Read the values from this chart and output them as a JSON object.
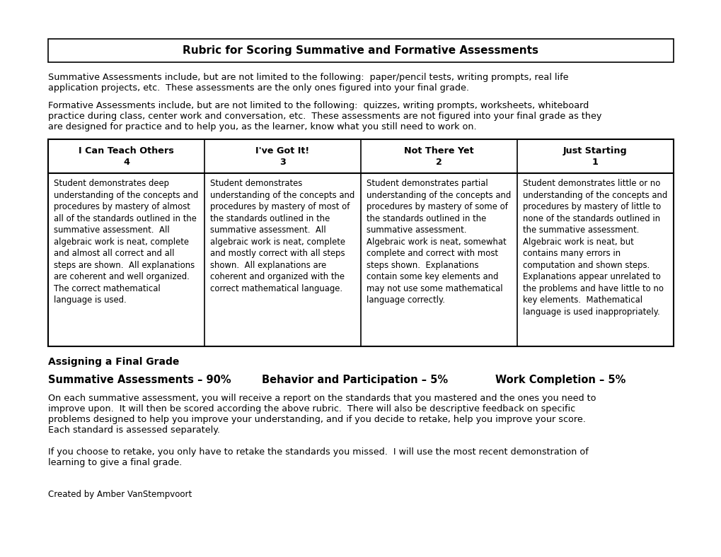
{
  "title": "Rubric for Scoring Summative and Formative Assessments",
  "summative_intro_l1": "Summative Assessments include, but are not limited to the following:  paper/pencil tests, writing prompts, real life",
  "summative_intro_l2": "application projects, etc.  These assessments are the only ones figured into your final grade.",
  "formative_intro_l1": "Formative Assessments include, but are not limited to the following:  quizzes, writing prompts, worksheets, whiteboard",
  "formative_intro_l2": "practice during class, center work and conversation, etc.  These assessments are not figured into your final grade as they",
  "formative_intro_l3": "are designed for practice and to help you, as the learner, know what you still need to work on.",
  "table_headers": [
    [
      "I Can Teach Others",
      "4"
    ],
    [
      "I've Got It!",
      "3"
    ],
    [
      "Not There Yet",
      "2"
    ],
    [
      "Just Starting",
      "1"
    ]
  ],
  "table_body": [
    "Student demonstrates deep\nunderstanding of the concepts and\nprocedures by mastery of almost\nall of the standards outlined in the\nsummative assessment.  All\nalgebraic work is neat, complete\nand almost all correct and all\nsteps are shown.  All explanations\nare coherent and well organized.\nThe correct mathematical\nlanguage is used.",
    "Student demonstrates\nunderstanding of the concepts and\nprocedures by mastery of most of\nthe standards outlined in the\nsummative assessment.  All\nalgebraic work is neat, complete\nand mostly correct with all steps\nshown.  All explanations are\ncoherent and organized with the\ncorrect mathematical language.",
    "Student demonstrates partial\nunderstanding of the concepts and\nprocedures by mastery of some of\nthe standards outlined in the\nsummative assessment.\nAlgebraic work is neat, somewhat\ncomplete and correct with most\nsteps shown.  Explanations\ncontain some key elements and\nmay not use some mathematical\nlanguage correctly.",
    "Student demonstrates little or no\nunderstanding of the concepts and\nprocedures by mastery of little to\nnone of the standards outlined in\nthe summative assessment.\nAlgebraic work is neat, but\ncontains many errors in\ncomputation and shown steps.\nExplanations appear unrelated to\nthe problems and have little to no\nkey elements.  Mathematical\nlanguage is used inappropriately."
  ],
  "assigning_header": "Assigning a Final Grade",
  "grade_parts": [
    "Summative Assessments – 90%",
    "Behavior and Participation – 5%",
    "Work Completion – 5%"
  ],
  "para1_lines": [
    "On each summative assessment, you will receive a report on the standards that you mastered and the ones you need to",
    "improve upon.  It will then be scored according the above rubric.  There will also be descriptive feedback on specific",
    "problems designed to help you improve your understanding, and if you decide to retake, help you improve your score.",
    "Each standard is assessed separately."
  ],
  "para2_lines": [
    "If you choose to retake, you only have to retake the standards you missed.  I will use the most recent demonstration of",
    "learning to give a final grade."
  ],
  "footer": "Created by Amber VanStempvoort",
  "bg_color": "#ffffff",
  "text_color": "#000000",
  "border_color": "#000000"
}
